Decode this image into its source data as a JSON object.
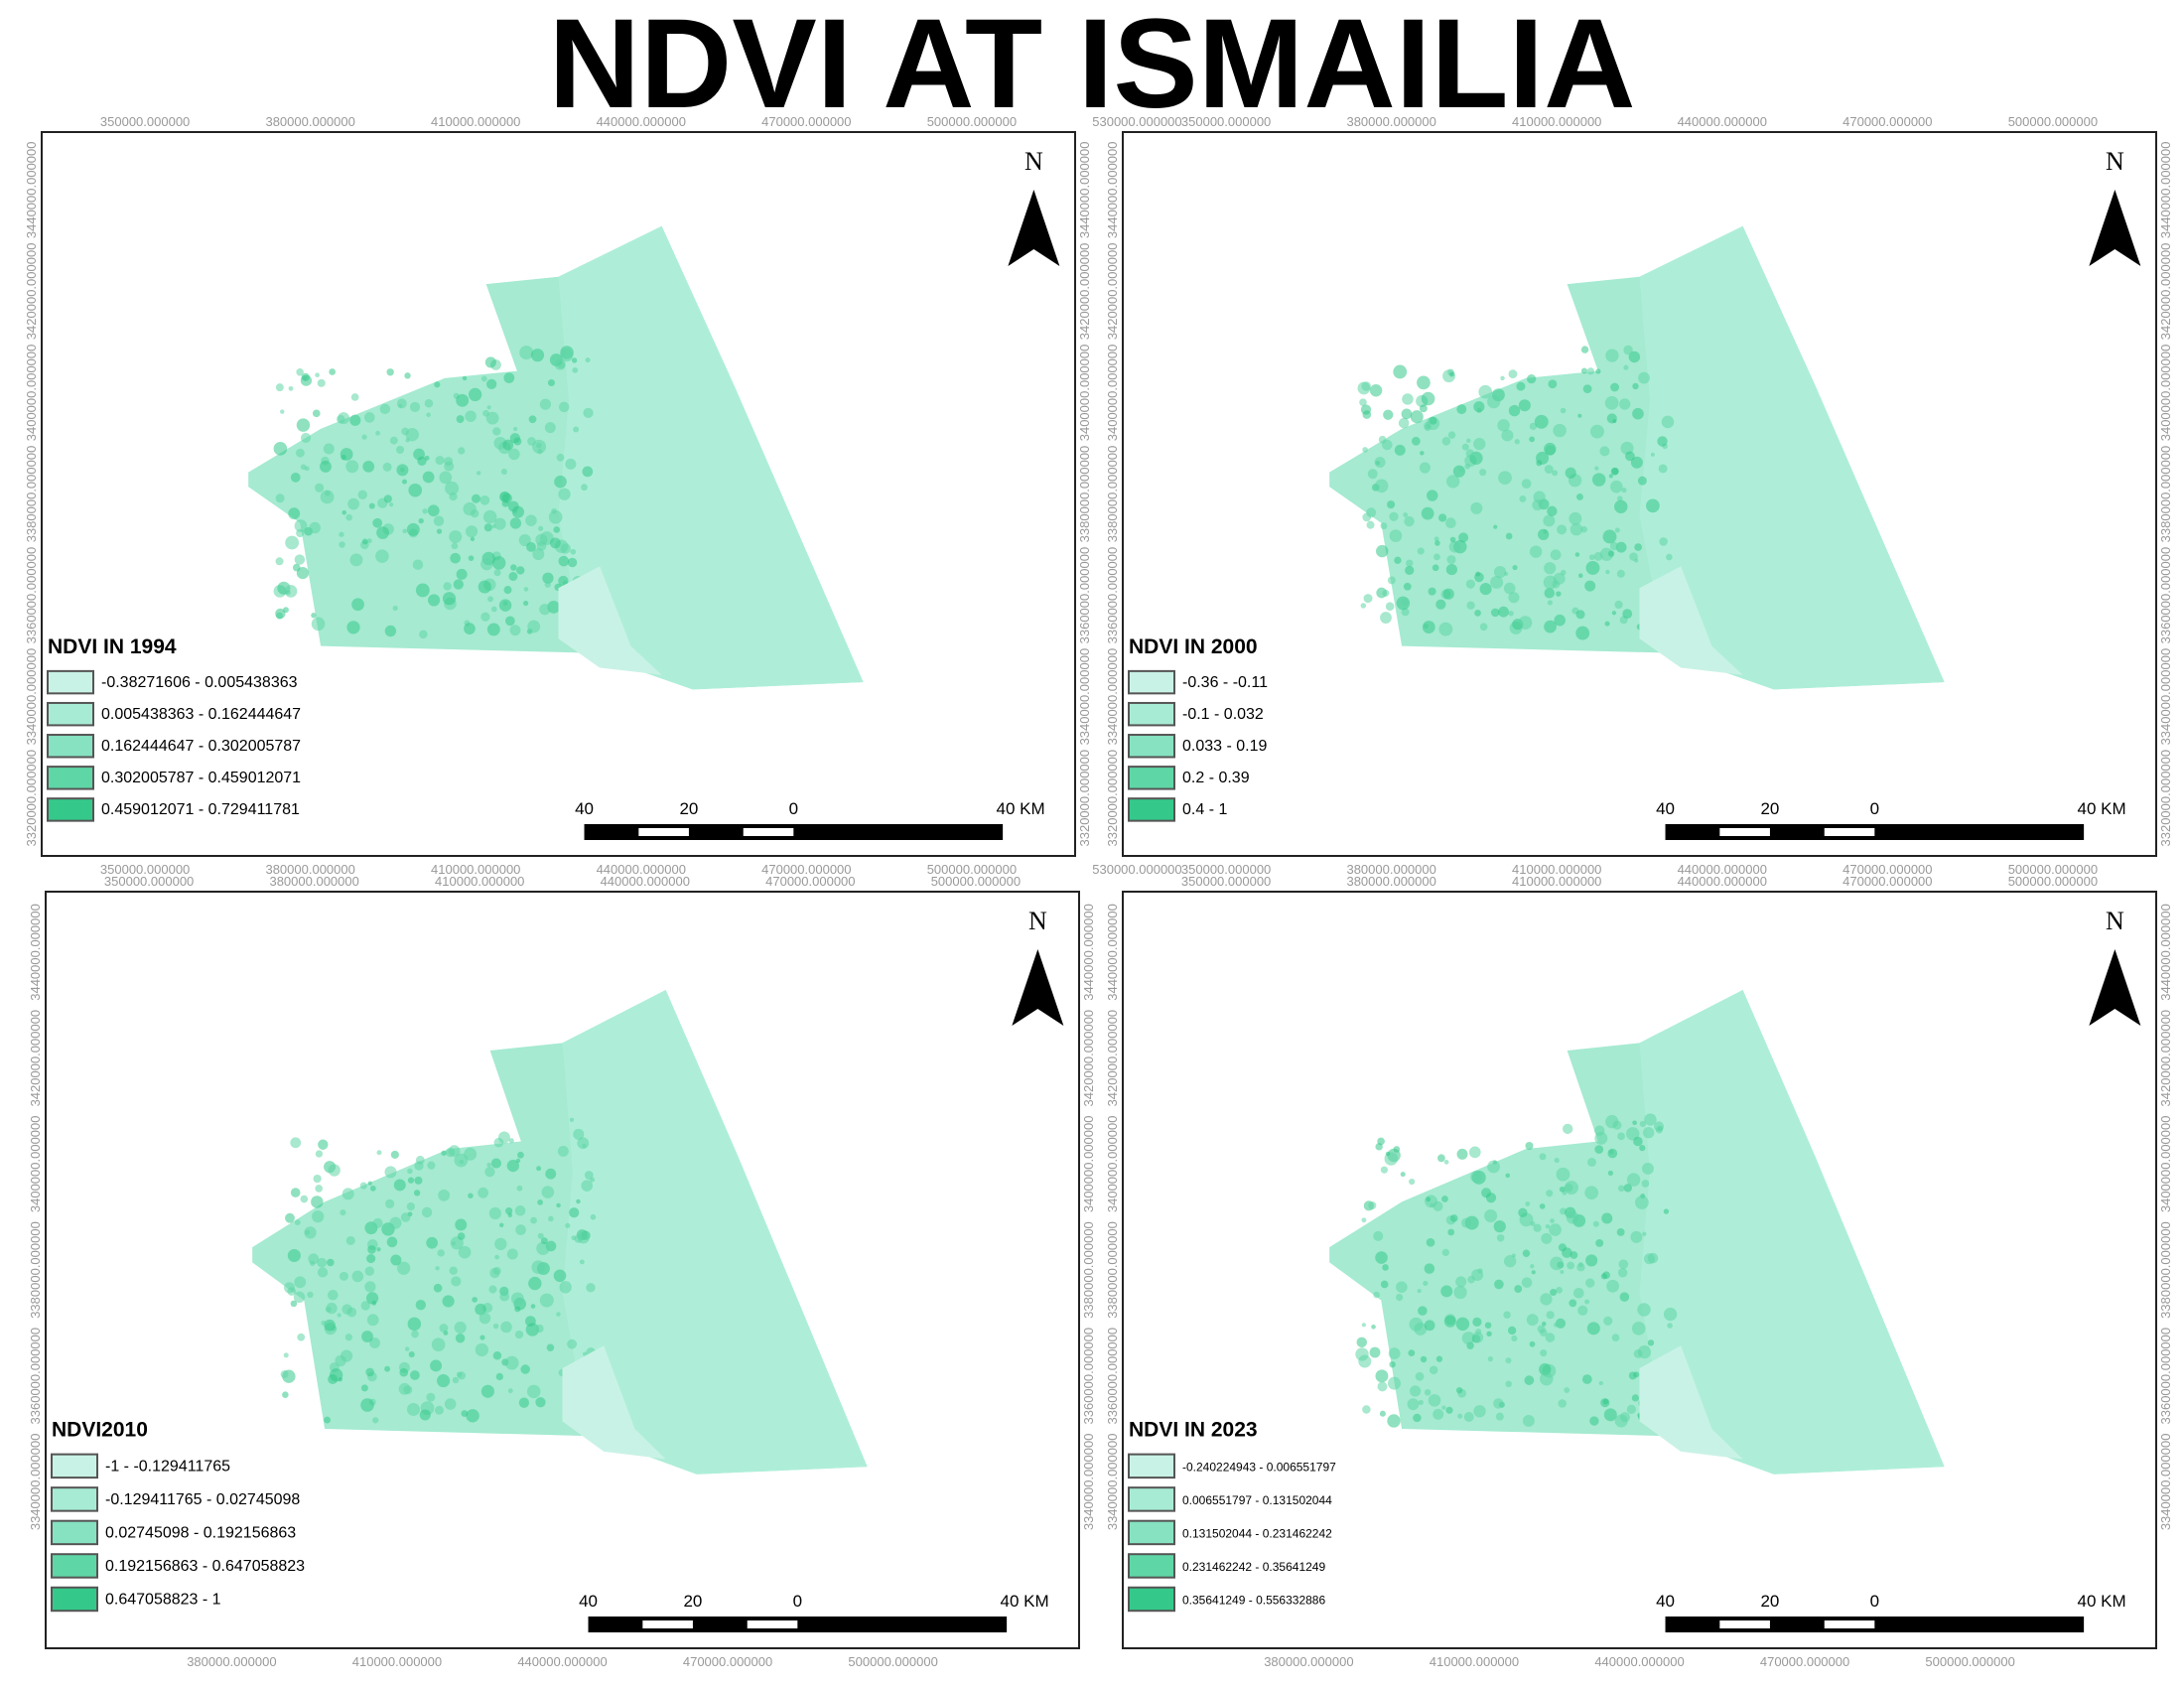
{
  "title": "NDVI AT ISMAILIA",
  "panels": [
    {
      "legend": {
        "title": "NDVI IN 1994",
        "items": [
          "-0.38271606 - 0.005438363",
          "0.005438363 - 0.162444647",
          "0.162444647 - 0.302005787",
          "0.302005787 - 0.459012071",
          "0.459012071 - 0.729411781"
        ]
      },
      "north": "N",
      "scale_labels": [
        "40",
        "20",
        "0",
        "40 KM"
      ],
      "x_labels_top": [
        "350000.000000",
        "380000.000000",
        "410000.000000",
        "440000.000000",
        "470000.000000",
        "500000.000000",
        "530000.000000"
      ],
      "x_labels_bottom": [
        "350000.000000",
        "380000.000000",
        "410000.000000",
        "440000.000000",
        "470000.000000",
        "500000.000000",
        "530000.000000"
      ],
      "y_labels_left": [
        "3440000.000000",
        "3420000.000000",
        "3400000.000000",
        "3380000.000000",
        "3360000.000000",
        "3340000.000000",
        "3320000.000000"
      ],
      "y_labels_right": [
        "3440000.000000",
        "3420000.000000",
        "3400000.000000",
        "3380000.000000",
        "3360000.000000",
        "3340000.000000",
        "3320000.000000"
      ]
    },
    {
      "legend": {
        "title": "NDVI IN 2000",
        "items": [
          "-0.36 - -0.11",
          "-0.1 - 0.032",
          "0.033 - 0.19",
          "0.2 - 0.39",
          "0.4 - 1"
        ]
      },
      "north": "N",
      "scale_labels": [
        "40",
        "20",
        "0",
        "40 KM"
      ],
      "x_labels_top": [
        "350000.000000",
        "380000.000000",
        "410000.000000",
        "440000.000000",
        "470000.000000",
        "500000.000000"
      ],
      "x_labels_bottom": [
        "350000.000000",
        "380000.000000",
        "410000.000000",
        "440000.000000",
        "470000.000000",
        "500000.000000"
      ],
      "y_labels_left": [
        "3440000.000000",
        "3420000.000000",
        "3400000.000000",
        "3380000.000000",
        "3360000.000000",
        "3340000.000000",
        "3320000.000000"
      ],
      "y_labels_right": [
        "3440000.000000",
        "3420000.000000",
        "3400000.000000",
        "3380000.000000",
        "3360000.000000",
        "3340000.000000",
        "3320000.000000"
      ]
    },
    {
      "legend": {
        "title": "NDVI2010",
        "items": [
          "-1 - -0.129411765",
          "-0.129411765 - 0.02745098",
          "0.02745098 - 0.192156863",
          "0.192156863 - 0.647058823",
          "0.647058823 - 1"
        ]
      },
      "north": "N",
      "scale_labels": [
        "40",
        "20",
        "0",
        "40 KM"
      ],
      "x_labels_top": [
        "350000.000000",
        "380000.000000",
        "410000.000000",
        "440000.000000",
        "470000.000000",
        "500000.000000"
      ],
      "x_labels_bottom": [
        "380000.000000",
        "410000.000000",
        "440000.000000",
        "470000.000000",
        "500000.000000"
      ],
      "y_labels_left": [
        "3440000.000000",
        "3420000.000000",
        "3400000.000000",
        "3380000.000000",
        "3360000.000000",
        "3340000.000000"
      ],
      "y_labels_right": [
        "3440000.000000",
        "3420000.000000",
        "3400000.000000",
        "3380000.000000",
        "3360000.000000",
        "3340000.000000"
      ]
    },
    {
      "legend": {
        "title": "NDVI IN 2023",
        "items": [
          "-0.240224943 - 0.006551797",
          "0.006551797 - 0.131502044",
          "0.131502044 - 0.231462242",
          "0.231462242 - 0.35641249",
          "0.35641249 - 0.556332886"
        ]
      },
      "north": "N",
      "scale_labels": [
        "40",
        "20",
        "0",
        "40 KM"
      ],
      "x_labels_top": [
        "350000.000000",
        "380000.000000",
        "410000.000000",
        "440000.000000",
        "470000.000000",
        "500000.000000"
      ],
      "x_labels_bottom": [
        "380000.000000",
        "410000.000000",
        "440000.000000",
        "470000.000000",
        "500000.000000"
      ],
      "y_labels_left": [
        "3440000.000000",
        "3420000.000000",
        "3400000.000000",
        "3380000.000000",
        "3360000.000000",
        "3340000.000000"
      ],
      "y_labels_right": [
        "3440000.000000",
        "3420000.000000",
        "3400000.000000",
        "3380000.000000",
        "3360000.000000",
        "3340000.000000"
      ]
    }
  ]
}
